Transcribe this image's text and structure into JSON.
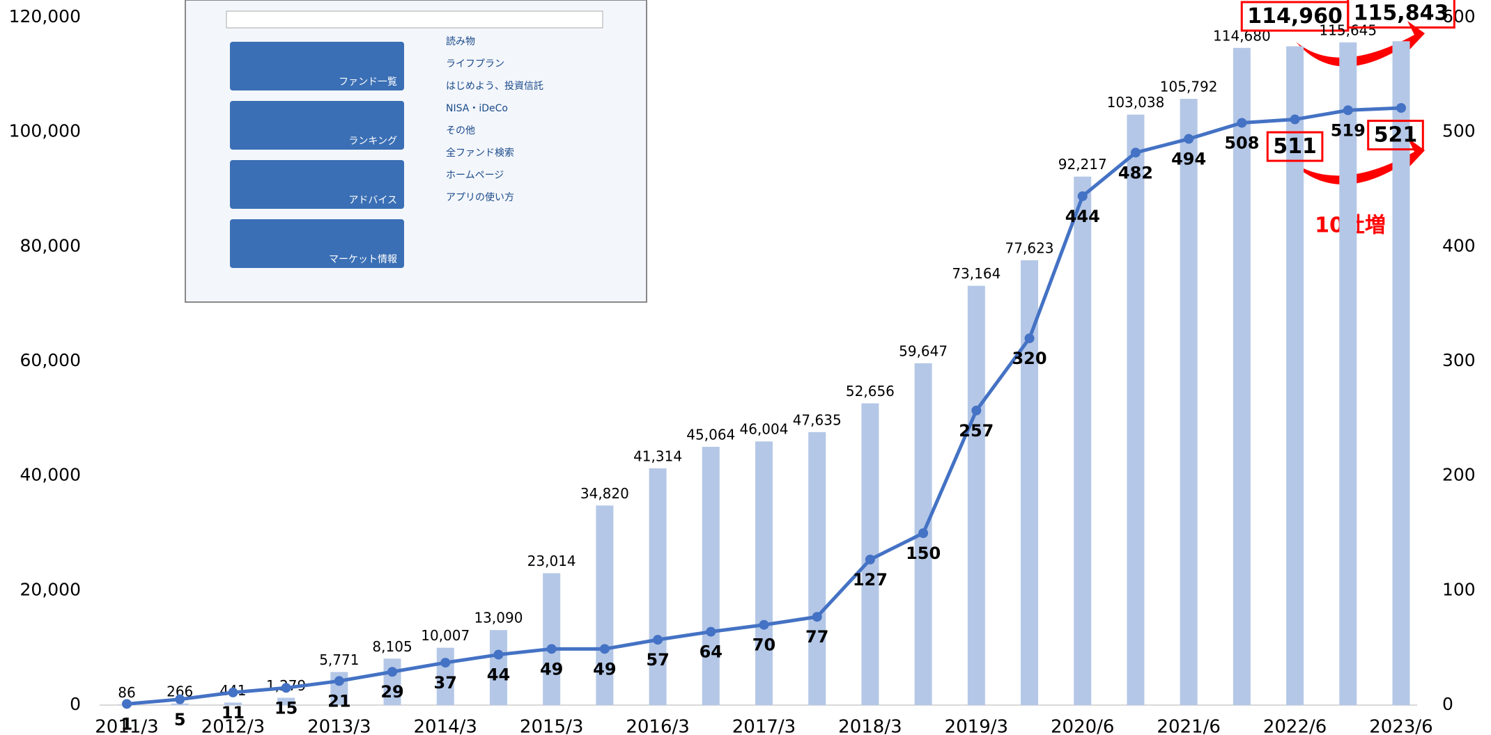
{
  "chart_data": {
    "type": "bar_line",
    "categories": [
      "2011/3",
      null,
      "2012/3",
      null,
      "2013/3",
      null,
      "2014/3",
      null,
      "2015/3",
      null,
      "2016/3",
      null,
      "2017/3",
      null,
      "2018/3",
      null,
      "2019/3",
      null,
      "2020/6",
      null,
      "2021/6",
      null,
      "2022/6",
      null,
      "2023/6"
    ],
    "series": [
      {
        "color": "#b4c7e7",
        "axis": "y",
        "kind": "bar",
        "values": [
          86,
          266,
          441,
          1279,
          5771,
          8105,
          10007,
          13090,
          23014,
          34820,
          41314,
          45064,
          46004,
          47635,
          52656,
          59647,
          73164,
          77623,
          92217,
          103038,
          105792,
          114680,
          114960,
          115645,
          115843
        ],
        "value_labels": [
          "86",
          "266",
          "441",
          "1,279",
          "5,771",
          "8,105",
          "10,007",
          "13,090",
          "23,014",
          "34,820",
          "41,314",
          "45,064",
          "46,004",
          "47,635",
          "52,656",
          "59,647",
          "73,164",
          "77,623",
          "92,217",
          "103,038",
          "105,792",
          "114,680",
          "114,960",
          "115,645",
          "115,843"
        ],
        "highlight": [
          22,
          24
        ]
      },
      {
        "color": "#4472c4",
        "axis": "y2",
        "kind": "line",
        "values": [
          1,
          5,
          11,
          15,
          21,
          29,
          37,
          44,
          49,
          49,
          57,
          64,
          70,
          77,
          127,
          150,
          257,
          320,
          444,
          482,
          494,
          508,
          511,
          519,
          521
        ],
        "highlight": [
          22,
          24
        ]
      }
    ],
    "ylim": [
      0,
      120000
    ],
    "yticks": [
      0,
      {
        "value": 20000,
        "label": "20,000"
      },
      {
        "value": 40000,
        "label": "40,000"
      },
      {
        "value": 60000,
        "label": "60,000"
      },
      {
        "value": 80000,
        "label": "80,000"
      },
      {
        "value": 100000,
        "label": "100,000"
      },
      {
        "value": 120000,
        "label": "120,000"
      }
    ],
    "y2lim": [
      0,
      600
    ],
    "y2ticks": [
      0,
      100,
      200,
      300,
      400,
      500,
      600
    ],
    "annotation": "10社増",
    "inset": {
      "items": [
        "ファンド一覧",
        "ランキング",
        "アドバイス",
        "マーケット情報",
        "読み物",
        "ライフプラン",
        "はじめよう、投資信託",
        "NISA・iDeCo",
        "その他",
        "全ファンド検索",
        "ホームページ",
        "アプリの使い方"
      ]
    }
  }
}
